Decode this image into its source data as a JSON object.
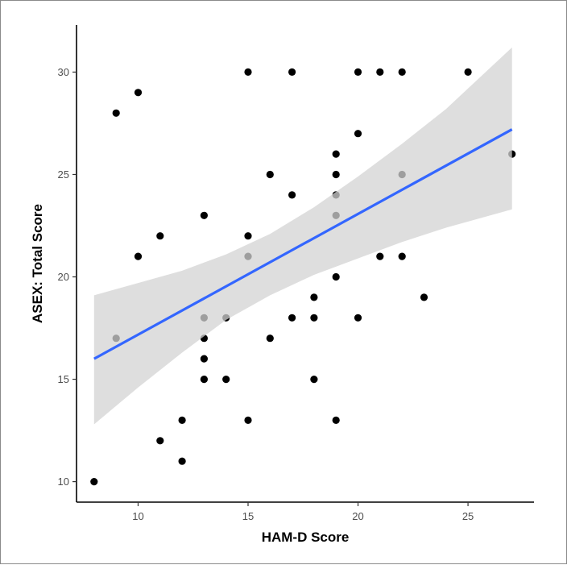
{
  "chart_data": {
    "type": "scatter",
    "title": "",
    "xlabel": "HAM-D Score",
    "ylabel": "ASEX: Total Score",
    "xlim": [
      7.2,
      28.0
    ],
    "ylim": [
      9.0,
      32.3
    ],
    "x_ticks": [
      10,
      15,
      20,
      25
    ],
    "y_ticks": [
      10,
      15,
      20,
      25,
      30
    ],
    "grid": false,
    "legend": null,
    "points": [
      {
        "x": 8,
        "y": 10
      },
      {
        "x": 9,
        "y": 28
      },
      {
        "x": 9,
        "y": 17
      },
      {
        "x": 10,
        "y": 29
      },
      {
        "x": 10,
        "y": 21
      },
      {
        "x": 11,
        "y": 22
      },
      {
        "x": 11,
        "y": 12
      },
      {
        "x": 12,
        "y": 13
      },
      {
        "x": 12,
        "y": 11
      },
      {
        "x": 13,
        "y": 23
      },
      {
        "x": 13,
        "y": 18
      },
      {
        "x": 13,
        "y": 17
      },
      {
        "x": 13,
        "y": 16
      },
      {
        "x": 13,
        "y": 15
      },
      {
        "x": 14,
        "y": 18
      },
      {
        "x": 14,
        "y": 15
      },
      {
        "x": 15,
        "y": 30
      },
      {
        "x": 15,
        "y": 22
      },
      {
        "x": 15,
        "y": 21
      },
      {
        "x": 15,
        "y": 13
      },
      {
        "x": 16,
        "y": 25
      },
      {
        "x": 16,
        "y": 17
      },
      {
        "x": 17,
        "y": 30
      },
      {
        "x": 17,
        "y": 24
      },
      {
        "x": 17,
        "y": 18
      },
      {
        "x": 18,
        "y": 19
      },
      {
        "x": 18,
        "y": 18
      },
      {
        "x": 18,
        "y": 15
      },
      {
        "x": 19,
        "y": 26
      },
      {
        "x": 19,
        "y": 25
      },
      {
        "x": 19,
        "y": 24
      },
      {
        "x": 19,
        "y": 23
      },
      {
        "x": 19,
        "y": 20
      },
      {
        "x": 19,
        "y": 13
      },
      {
        "x": 20,
        "y": 30
      },
      {
        "x": 20,
        "y": 27
      },
      {
        "x": 20,
        "y": 18
      },
      {
        "x": 21,
        "y": 30
      },
      {
        "x": 21,
        "y": 21
      },
      {
        "x": 22,
        "y": 30
      },
      {
        "x": 22,
        "y": 25
      },
      {
        "x": 22,
        "y": 21
      },
      {
        "x": 23,
        "y": 19
      },
      {
        "x": 25,
        "y": 30
      },
      {
        "x": 27,
        "y": 26
      }
    ],
    "regression": {
      "method": "lm",
      "color": "#3366ff",
      "x": [
        8,
        27
      ],
      "y": [
        16.0,
        27.2
      ],
      "confidence_band": {
        "color": "#d3d3d3",
        "x": [
          8,
          10,
          12,
          14,
          16,
          18,
          20,
          22,
          24,
          27
        ],
        "upper": [
          19.1,
          19.7,
          20.3,
          21.1,
          22.1,
          23.4,
          24.9,
          26.5,
          28.2,
          31.2
        ],
        "lower": [
          12.8,
          14.6,
          16.3,
          17.9,
          19.1,
          20.1,
          20.9,
          21.7,
          22.4,
          23.3
        ]
      }
    },
    "point_color": "#000000"
  }
}
